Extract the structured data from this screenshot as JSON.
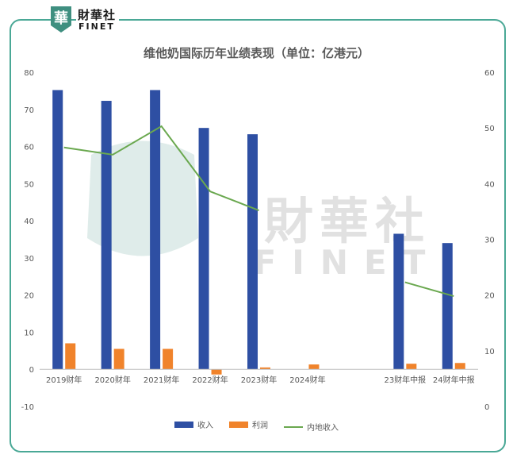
{
  "logo": {
    "badge_glyph": "華",
    "name_cn": "財華社",
    "name_en": "FINET"
  },
  "watermark": {
    "glyph": "華",
    "name_cn": "財華社",
    "name_en": "FINET"
  },
  "chart_data": {
    "type": "bar",
    "title": "维他奶国际历年业绩表现（单位：亿港元）",
    "categories": [
      "2019财年",
      "2020财年",
      "2021财年",
      "2022财年",
      "2023财年",
      "2024财年",
      "",
      "23财年中报",
      "24财年中报"
    ],
    "series": [
      {
        "name": "收入",
        "type": "bar",
        "axis": "left",
        "color": "#2e4fa3",
        "values": [
          75.2,
          72.3,
          75.2,
          65.0,
          63.3,
          null,
          null,
          36.5,
          34.0
        ]
      },
      {
        "name": "利润",
        "type": "bar",
        "axis": "left",
        "color": "#f0832b",
        "values": [
          7.0,
          5.5,
          5.5,
          -1.4,
          0.5,
          1.3,
          null,
          1.5,
          1.7
        ]
      },
      {
        "name": "内地收入",
        "type": "line",
        "axis": "right",
        "color": "#6aa84f",
        "values": [
          46.5,
          45.2,
          50.3,
          38.6,
          35.2,
          null,
          null,
          22.3,
          19.8
        ]
      }
    ],
    "y_left": {
      "min": -10,
      "max": 80,
      "step": 10,
      "ticks": [
        "-10",
        "0",
        "10",
        "20",
        "30",
        "40",
        "50",
        "60",
        "70",
        "80"
      ]
    },
    "y_right": {
      "min": 0,
      "max": 60,
      "step": 10,
      "ticks": [
        "0",
        "10",
        "20",
        "30",
        "40",
        "50",
        "60"
      ]
    },
    "grid": false,
    "legend_position": "bottom"
  }
}
